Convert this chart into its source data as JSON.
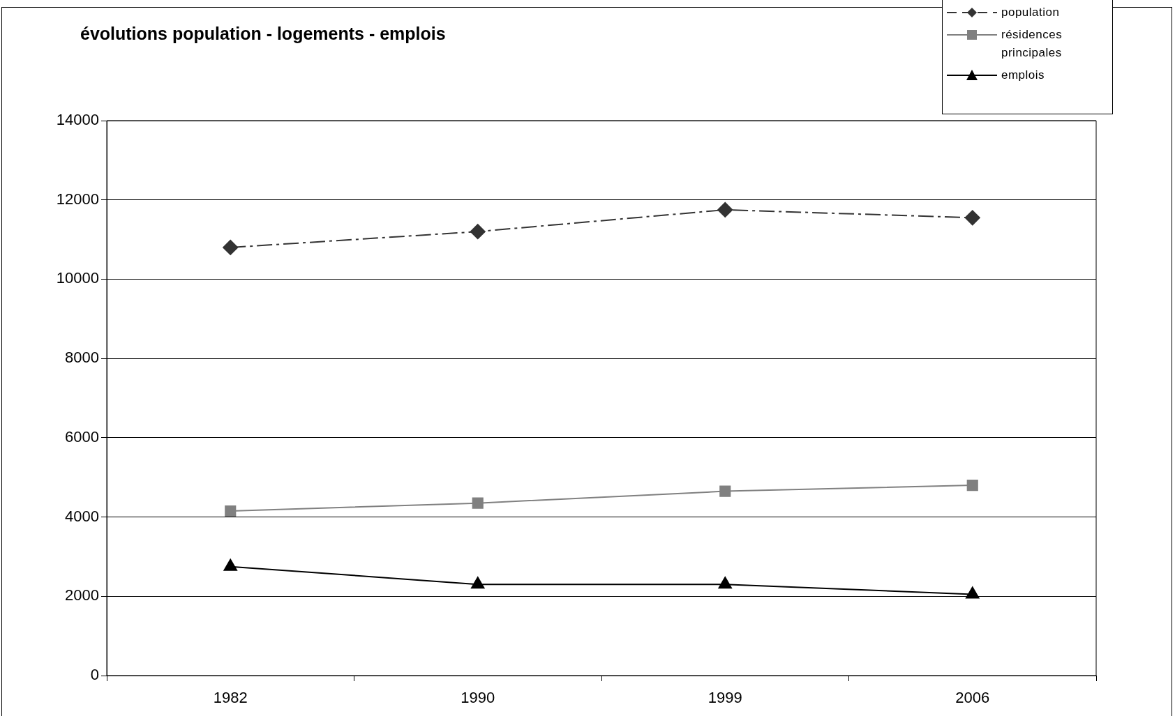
{
  "chart_data": {
    "type": "line",
    "title": "évolutions population - logements - emplois",
    "categories": [
      "1982",
      "1990",
      "1999",
      "2006"
    ],
    "series": [
      {
        "name": "population",
        "color": "#333333",
        "values": [
          10800,
          11200,
          11750,
          11550
        ],
        "marker": "diamond",
        "line_style": "dashed"
      },
      {
        "name": "résidences principales",
        "color": "#808080",
        "values": [
          4150,
          4350,
          4650,
          4800
        ],
        "marker": "square",
        "line_style": "solid"
      },
      {
        "name": "emplois",
        "color": "#000000",
        "values": [
          2750,
          2300,
          2300,
          2050
        ],
        "marker": "triangle",
        "line_style": "solid"
      }
    ],
    "ylim": [
      0,
      14000
    ],
    "yticks": [
      0,
      2000,
      4000,
      6000,
      8000,
      10000,
      12000,
      14000
    ],
    "grid": "y",
    "legend": "top right"
  }
}
